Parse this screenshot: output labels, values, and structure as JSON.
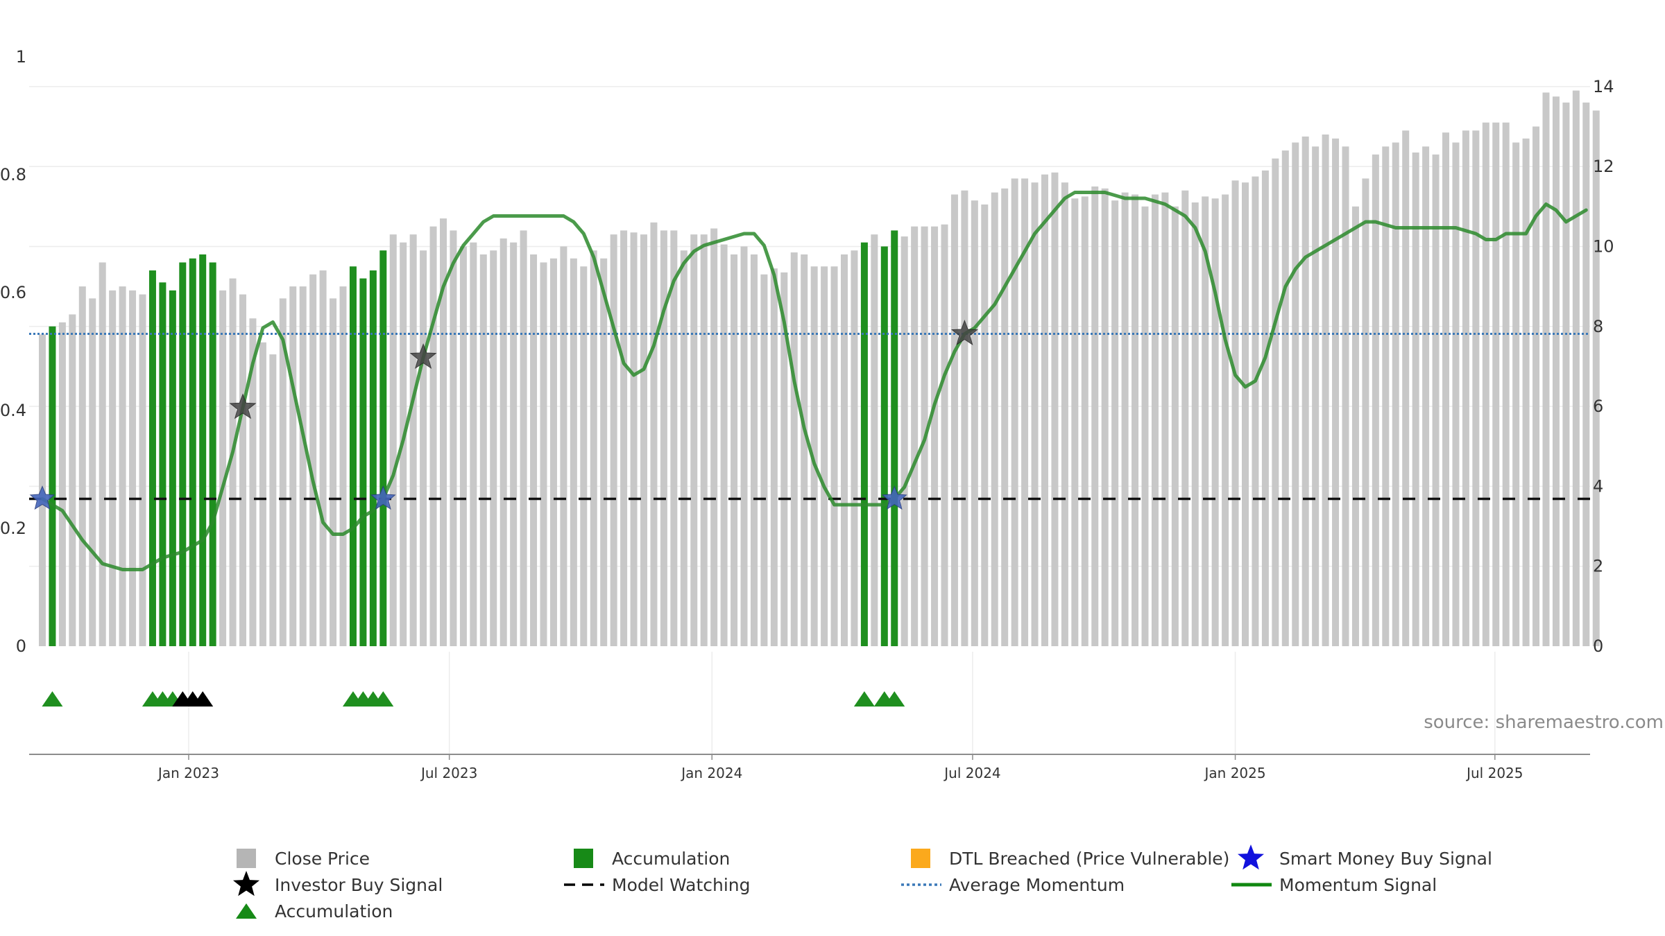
{
  "chart_data": {
    "type": "bar",
    "source": "source: sharemaestro.com",
    "left_axis": {
      "ticks": [
        0,
        0.2,
        0.4,
        0.6,
        0.8,
        1
      ],
      "labels": [
        "0",
        "0.2",
        "0.4",
        "0.6",
        "0.8",
        "1"
      ],
      "ylim": [
        0,
        1
      ]
    },
    "right_axis": {
      "ticks": [
        0,
        2,
        4,
        6,
        8,
        10,
        12,
        14
      ],
      "labels": [
        "0",
        "2",
        "4",
        "6",
        "8",
        "10",
        "12",
        "14"
      ],
      "ylim": [
        0,
        14.5
      ]
    },
    "x_ticks": [
      {
        "label": "Jan 2023",
        "week": 14.6
      },
      {
        "label": "Jul 2023",
        "week": 40.6
      },
      {
        "label": "Jan 2024",
        "week": 66.8
      },
      {
        "label": "Jul 2024",
        "week": 92.8
      },
      {
        "label": "Jan 2025",
        "week": 119.0
      },
      {
        "label": "Jul 2025",
        "week": 144.9
      }
    ],
    "close_prices": [
      7.8,
      8.0,
      8.1,
      8.3,
      9.0,
      8.7,
      9.6,
      8.9,
      9.0,
      8.9,
      8.8,
      9.4,
      9.1,
      8.9,
      9.6,
      9.7,
      9.8,
      9.6,
      8.9,
      9.2,
      8.8,
      8.2,
      7.6,
      7.3,
      8.7,
      9.0,
      9.0,
      9.3,
      9.4,
      8.7,
      9.0,
      9.5,
      9.2,
      9.4,
      9.9,
      10.3,
      10.1,
      10.3,
      9.9,
      10.5,
      10.7,
      10.4,
      10.0,
      10.1,
      9.8,
      9.9,
      10.2,
      10.1,
      10.4,
      9.8,
      9.6,
      9.7,
      10.0,
      9.7,
      9.5,
      9.9,
      9.7,
      10.3,
      10.4,
      10.35,
      10.3,
      10.6,
      10.4,
      10.4,
      9.9,
      10.3,
      10.3,
      10.45,
      10.05,
      9.8,
      10.0,
      9.8,
      9.3,
      9.45,
      9.35,
      9.85,
      9.8,
      9.5,
      9.5,
      9.5,
      9.8,
      9.9,
      10.1,
      10.3,
      10.0,
      10.4,
      10.25,
      10.5,
      10.5,
      10.5,
      10.55,
      11.3,
      11.4,
      11.15,
      11.05,
      11.35,
      11.45,
      11.7,
      11.7,
      11.6,
      11.8,
      11.85,
      11.6,
      11.2,
      11.25,
      11.5,
      11.45,
      11.15,
      11.35,
      11.3,
      11.0,
      11.3,
      11.35,
      11.0,
      11.4,
      11.1,
      11.25,
      11.2,
      11.3,
      11.65,
      11.6,
      11.75,
      11.9,
      12.2,
      12.4,
      12.6,
      12.75,
      12.5,
      12.8,
      12.7,
      12.5,
      11.0,
      11.7,
      12.3,
      12.5,
      12.6,
      12.9,
      12.35,
      12.5,
      12.3,
      12.85,
      12.6,
      12.9,
      12.9,
      13.1,
      13.1,
      13.1,
      12.6,
      12.7,
      13.0,
      13.85,
      13.75,
      13.6,
      13.9,
      13.6,
      13.4
    ],
    "accumulation_weeks": [
      1,
      11,
      12,
      13,
      14,
      15,
      16,
      17,
      31,
      32,
      33,
      34,
      82,
      84,
      85
    ],
    "average_momentum": 0.53,
    "model_watching": 0.25,
    "momentum_signal": [
      [
        0,
        0.25
      ],
      [
        2,
        0.23
      ],
      [
        4,
        0.18
      ],
      [
        6,
        0.14
      ],
      [
        8,
        0.13
      ],
      [
        10,
        0.13
      ],
      [
        12,
        0.15
      ],
      [
        14,
        0.16
      ],
      [
        16,
        0.18
      ],
      [
        17,
        0.21
      ],
      [
        19,
        0.33
      ],
      [
        21,
        0.48
      ],
      [
        22,
        0.54
      ],
      [
        23,
        0.55
      ],
      [
        24,
        0.52
      ],
      [
        25,
        0.44
      ],
      [
        26,
        0.36
      ],
      [
        27,
        0.28
      ],
      [
        28,
        0.21
      ],
      [
        29,
        0.19
      ],
      [
        30,
        0.19
      ],
      [
        31,
        0.2
      ],
      [
        32,
        0.22
      ],
      [
        33,
        0.23
      ],
      [
        34,
        0.25
      ],
      [
        35,
        0.29
      ],
      [
        36,
        0.35
      ],
      [
        37,
        0.42
      ],
      [
        38,
        0.49
      ],
      [
        39,
        0.55
      ],
      [
        40,
        0.61
      ],
      [
        41,
        0.65
      ],
      [
        42,
        0.68
      ],
      [
        43,
        0.7
      ],
      [
        44,
        0.72
      ],
      [
        45,
        0.73
      ],
      [
        47,
        0.73
      ],
      [
        49,
        0.73
      ],
      [
        51,
        0.73
      ],
      [
        52,
        0.73
      ],
      [
        53,
        0.72
      ],
      [
        54,
        0.7
      ],
      [
        55,
        0.66
      ],
      [
        56,
        0.6
      ],
      [
        57,
        0.54
      ],
      [
        58,
        0.48
      ],
      [
        59,
        0.46
      ],
      [
        60,
        0.47
      ],
      [
        61,
        0.51
      ],
      [
        62,
        0.57
      ],
      [
        63,
        0.62
      ],
      [
        64,
        0.65
      ],
      [
        65,
        0.67
      ],
      [
        66,
        0.68
      ],
      [
        68,
        0.69
      ],
      [
        70,
        0.7
      ],
      [
        71,
        0.7
      ],
      [
        72,
        0.68
      ],
      [
        73,
        0.63
      ],
      [
        74,
        0.55
      ],
      [
        75,
        0.45
      ],
      [
        76,
        0.37
      ],
      [
        77,
        0.31
      ],
      [
        78,
        0.27
      ],
      [
        79,
        0.24
      ],
      [
        80,
        0.24
      ],
      [
        82,
        0.24
      ],
      [
        84,
        0.24
      ],
      [
        85,
        0.25
      ],
      [
        86,
        0.27
      ],
      [
        87,
        0.31
      ],
      [
        88,
        0.35
      ],
      [
        89,
        0.41
      ],
      [
        90,
        0.46
      ],
      [
        91,
        0.5
      ],
      [
        92,
        0.53
      ],
      [
        93,
        0.54
      ],
      [
        94,
        0.56
      ],
      [
        95,
        0.58
      ],
      [
        96,
        0.61
      ],
      [
        97,
        0.64
      ],
      [
        98,
        0.67
      ],
      [
        99,
        0.7
      ],
      [
        100,
        0.72
      ],
      [
        101,
        0.74
      ],
      [
        102,
        0.76
      ],
      [
        103,
        0.77
      ],
      [
        104,
        0.77
      ],
      [
        106,
        0.77
      ],
      [
        108,
        0.76
      ],
      [
        110,
        0.76
      ],
      [
        112,
        0.75
      ],
      [
        114,
        0.73
      ],
      [
        115,
        0.71
      ],
      [
        116,
        0.67
      ],
      [
        117,
        0.6
      ],
      [
        118,
        0.52
      ],
      [
        119,
        0.46
      ],
      [
        120,
        0.44
      ],
      [
        121,
        0.45
      ],
      [
        122,
        0.49
      ],
      [
        123,
        0.55
      ],
      [
        124,
        0.61
      ],
      [
        125,
        0.64
      ],
      [
        126,
        0.66
      ],
      [
        127,
        0.67
      ],
      [
        128,
        0.68
      ],
      [
        129,
        0.69
      ],
      [
        130,
        0.7
      ],
      [
        131,
        0.71
      ],
      [
        132,
        0.72
      ],
      [
        133,
        0.72
      ],
      [
        135,
        0.71
      ],
      [
        137,
        0.71
      ],
      [
        139,
        0.71
      ],
      [
        141,
        0.71
      ],
      [
        143,
        0.7
      ],
      [
        144,
        0.69
      ],
      [
        145,
        0.69
      ],
      [
        146,
        0.7
      ],
      [
        147,
        0.7
      ],
      [
        148,
        0.7
      ],
      [
        149,
        0.73
      ],
      [
        150,
        0.75
      ],
      [
        151,
        0.74
      ],
      [
        152,
        0.72
      ],
      [
        153,
        0.73
      ],
      [
        154,
        0.74
      ]
    ],
    "smart_money_buy_signals": [
      0,
      34,
      85
    ],
    "investor_buy_signals": [
      20,
      38,
      92
    ],
    "accumulation_markers": {
      "green": [
        1,
        11,
        12,
        13,
        31,
        32,
        33,
        34,
        82,
        84,
        85
      ],
      "black": [
        14,
        15,
        16
      ]
    },
    "legend": [
      {
        "label": "Close Price",
        "symbol": "square",
        "color": "#b5b5b5"
      },
      {
        "label": "Accumulation",
        "symbol": "square",
        "color": "#178a17"
      },
      {
        "label": "DTL Breached (Price Vulnerable)",
        "symbol": "square",
        "color": "#fba91c"
      },
      {
        "label": "Smart Money Buy Signal",
        "symbol": "star",
        "color": "#1111dd"
      },
      {
        "label": "Investor Buy Signal",
        "symbol": "star",
        "color": "#000000"
      },
      {
        "label": "Model Watching",
        "symbol": "dash",
        "color": "#000000"
      },
      {
        "label": "Average Momentum",
        "symbol": "dot",
        "color": "#3a78b8"
      },
      {
        "label": "Momentum Signal",
        "symbol": "line",
        "color": "#118811"
      },
      {
        "label": "Accumulation",
        "symbol": "triangle",
        "color": "#178a17"
      }
    ],
    "colors": {
      "price": "#c8c8c8",
      "accumulation": "#1f8f1f",
      "momentum": "#2b8a2b",
      "average": "#3a78b8",
      "watching": "#111111",
      "smart_star": "#4466bb",
      "investor_star": "#444444"
    }
  }
}
